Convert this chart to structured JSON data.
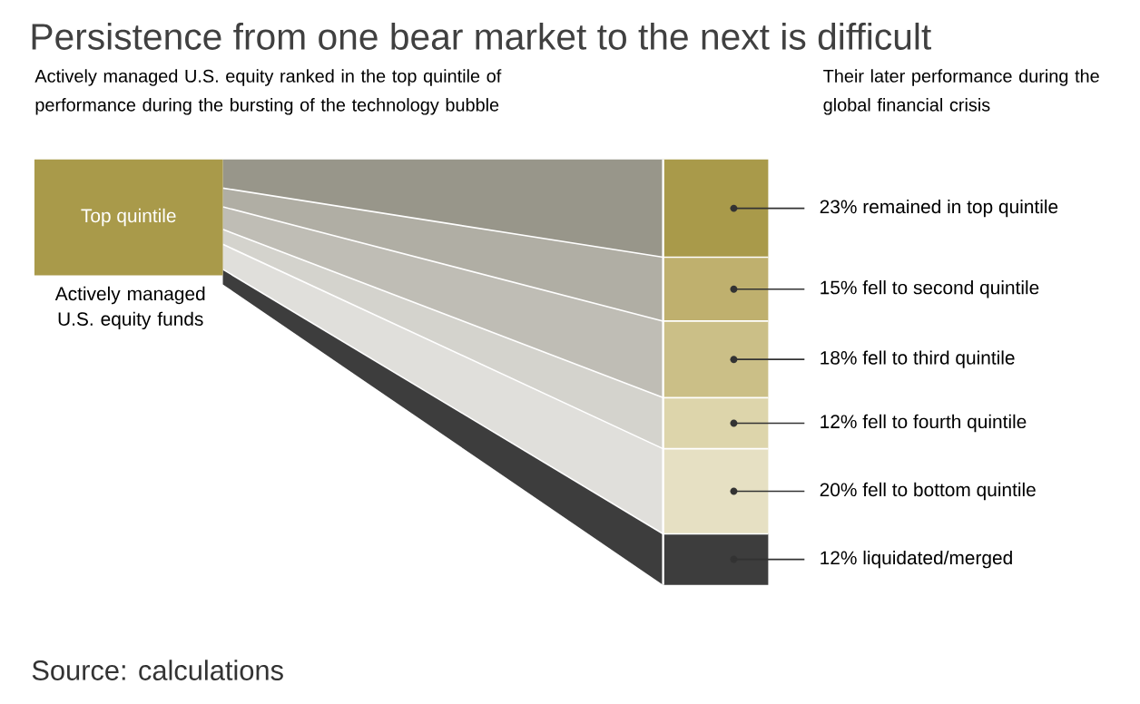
{
  "chart_data": {
    "type": "other",
    "title": "Persistence from one bear market to the next is difficult",
    "categories": [
      "remained in top quintile",
      "fell to second quintile",
      "fell to third quintile",
      "fell to fourth quintile",
      "fell to bottom quintile",
      "liquidated/merged"
    ],
    "value_labels": [
      "23%",
      "15%",
      "18%",
      "12%",
      "20%",
      "12%"
    ],
    "values": [
      23,
      15,
      18,
      12,
      20,
      12
    ],
    "colors": [
      "#a99a4a",
      "#bfb06e",
      "#cbbf87",
      "#ddd5ab",
      "#e6e0c3",
      "#3d3d3d"
    ],
    "annotations": [
      "Actively managed U.S. equity ranked in the top quintile of performance during the bursting of the technology bubble",
      "Their later performance during the global financial crisis",
      "Top quintile",
      "Actively managed U.S. equity funds",
      "Source: calculations"
    ]
  }
}
